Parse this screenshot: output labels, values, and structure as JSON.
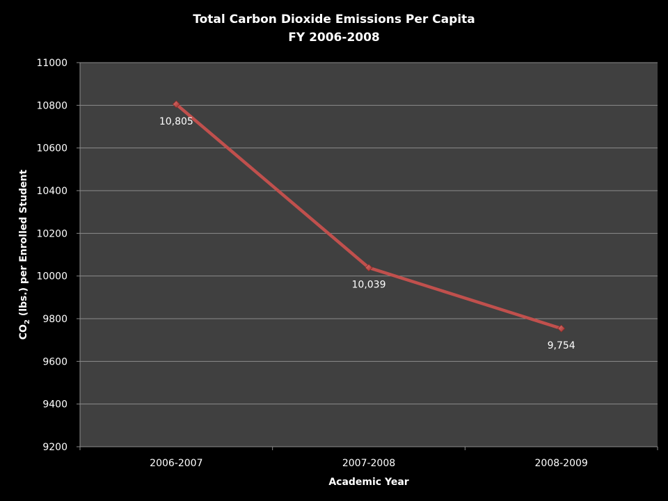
{
  "chart_data": {
    "type": "line",
    "title": "Total Carbon Dioxide Emissions Per Capita",
    "subtitle": "FY 2006-2008",
    "xlabel": "Academic Year",
    "ylabel": {
      "prefix": "CO",
      "subscript": "2",
      "suffix": " (lbs.) per Enrolled Student"
    },
    "categories": [
      "2006-2007",
      "2007-2008",
      "2008-2009"
    ],
    "series": [
      {
        "values": [
          10805,
          10039,
          9754
        ],
        "labels": [
          "10,805",
          "10,039",
          "9,754"
        ],
        "color": "#c0504d"
      }
    ],
    "ylim": [
      9200,
      11000
    ],
    "yticks": [
      9200,
      9400,
      9600,
      9800,
      10000,
      10200,
      10400,
      10600,
      10800,
      11000
    ],
    "grid": true,
    "legend": "none",
    "colors": {
      "background": "#000000",
      "plot_area": "#404040",
      "gridline": "#8c8c8c",
      "text": "#ffffff"
    }
  }
}
